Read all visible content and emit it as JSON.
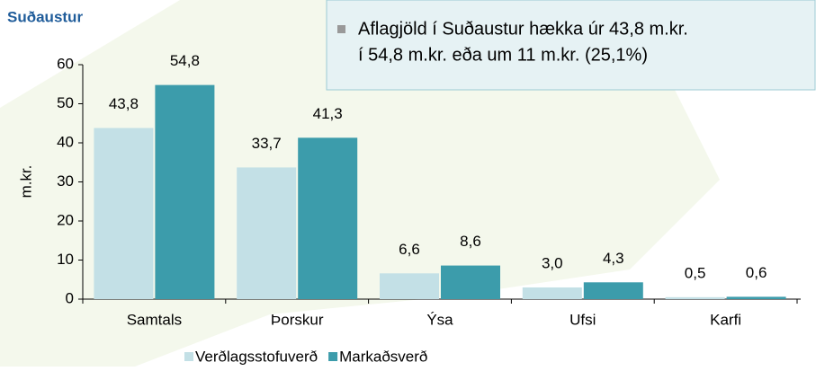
{
  "chart_data": {
    "type": "bar",
    "title": "Suðaustur",
    "annotation": [
      "Aflagjöld í Suðaustur hækka úr 43,8 m.kr.",
      "í 54,8 m.kr. eða um 11 m.kr. (25,1%)"
    ],
    "y_label": "m.kr.",
    "categories": [
      "Samtals",
      "Þorskur",
      "Ýsa",
      "Ufsi",
      "Karfi"
    ],
    "series": [
      {
        "name": "Verðlagsstofuverð",
        "color": "#c3e0e6",
        "values": [
          43.8,
          33.7,
          6.6,
          3.0,
          0.5
        ],
        "value_labels": [
          "43,8",
          "33,7",
          "6,6",
          "3,0",
          "0,5"
        ]
      },
      {
        "name": "Markaðsverð",
        "color": "#3c9cab",
        "values": [
          54.8,
          41.3,
          8.6,
          4.3,
          0.6
        ],
        "value_labels": [
          "54,8",
          "41,3",
          "8,6",
          "4,3",
          "0,6"
        ]
      }
    ],
    "ylim": [
      0,
      60
    ],
    "yticks": [
      0,
      10,
      20,
      30,
      40,
      50,
      60
    ],
    "legend": "bottom"
  }
}
